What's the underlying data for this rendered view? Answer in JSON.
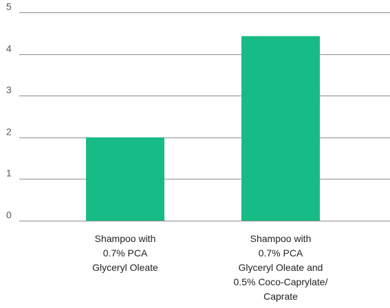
{
  "chart_data": {
    "type": "bar",
    "categories": [
      [
        "Shampoo with",
        "0.7% PCA",
        "Glyceryl Oleate"
      ],
      [
        "Shampoo with",
        "0.7% PCA",
        "Glyceryl Oleate and",
        "0.5% Coco-Caprylate/",
        "Caprate"
      ]
    ],
    "values": [
      2.0,
      4.43
    ],
    "yticks": [
      "0",
      "1",
      "2",
      "3",
      "4",
      "5"
    ],
    "ylim": [
      0,
      5
    ],
    "grid": true,
    "legend": "none",
    "colors": {
      "bar": "#17bb85",
      "grid": "#8c8c8c",
      "tick_text": "#555555",
      "category_text": "#222222"
    }
  }
}
